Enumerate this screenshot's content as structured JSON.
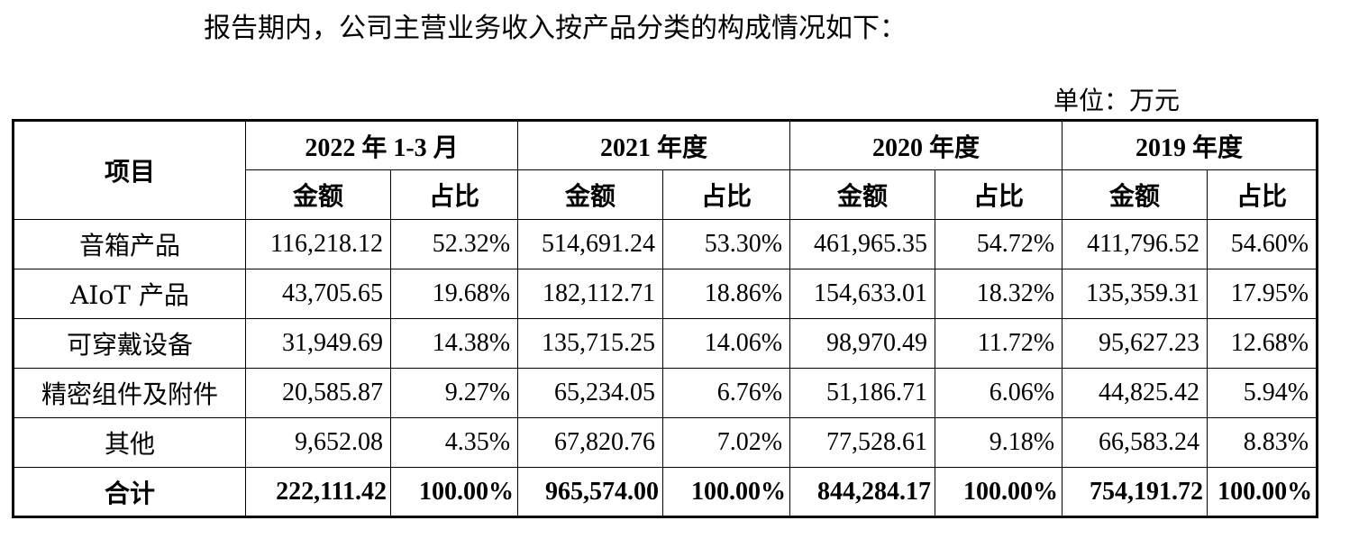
{
  "intro_text": "报告期内，公司主营业务收入按产品分类的构成情况如下：",
  "unit_text": "单位：万元",
  "table": {
    "item_header": "项目",
    "periods": [
      "2022 年 1-3 月",
      "2021 年度",
      "2020 年度",
      "2019 年度"
    ],
    "sub_headers": {
      "amount": "金额",
      "ratio": "占比"
    },
    "rows": [
      {
        "label": "音箱产品",
        "cells": [
          "116,218.12",
          "52.32%",
          "514,691.24",
          "53.30%",
          "461,965.35",
          "54.72%",
          "411,796.52",
          "54.60%"
        ]
      },
      {
        "label": "AIoT 产品",
        "cells": [
          "43,705.65",
          "19.68%",
          "182,112.71",
          "18.86%",
          "154,633.01",
          "18.32%",
          "135,359.31",
          "17.95%"
        ]
      },
      {
        "label": "可穿戴设备",
        "cells": [
          "31,949.69",
          "14.38%",
          "135,715.25",
          "14.06%",
          "98,970.49",
          "11.72%",
          "95,627.23",
          "12.68%"
        ]
      },
      {
        "label": "精密组件及附件",
        "cells": [
          "20,585.87",
          "9.27%",
          "65,234.05",
          "6.76%",
          "51,186.71",
          "6.06%",
          "44,825.42",
          "5.94%"
        ]
      },
      {
        "label": "其他",
        "cells": [
          "9,652.08",
          "4.35%",
          "67,820.76",
          "7.02%",
          "77,528.61",
          "9.18%",
          "66,583.24",
          "8.83%"
        ]
      },
      {
        "label": "合计",
        "cells": [
          "222,111.42",
          "100.00%",
          "965,574.00",
          "100.00%",
          "844,284.17",
          "100.00%",
          "754,191.72",
          "100.00%"
        ]
      }
    ]
  }
}
